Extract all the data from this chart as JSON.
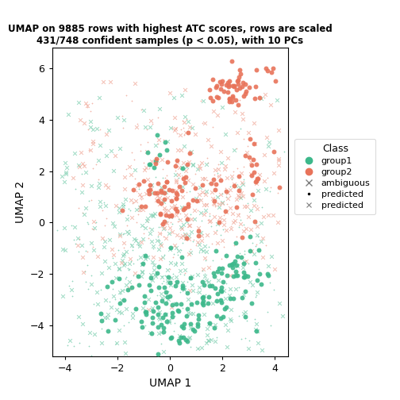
{
  "title": "UMAP on 9885 rows with highest ATC scores, rows are scaled\n431/748 confident samples (p < 0.05), with 10 PCs",
  "xlabel": "UMAP 1",
  "ylabel": "UMAP 2",
  "xlim": [
    -4.5,
    4.5
  ],
  "ylim": [
    -5.2,
    6.8
  ],
  "xticks": [
    -4,
    -2,
    0,
    2,
    4
  ],
  "yticks": [
    -4,
    -2,
    0,
    2,
    4,
    6
  ],
  "group1_color": "#3DB88B",
  "group2_color": "#E8735A",
  "pred1_color": "#3DB88B",
  "pred2_color": "#E8735A",
  "ambiguous_color": "#3DB88B",
  "ambiguous2_color": "#E8735A",
  "legend_title": "Class",
  "seed": 42
}
